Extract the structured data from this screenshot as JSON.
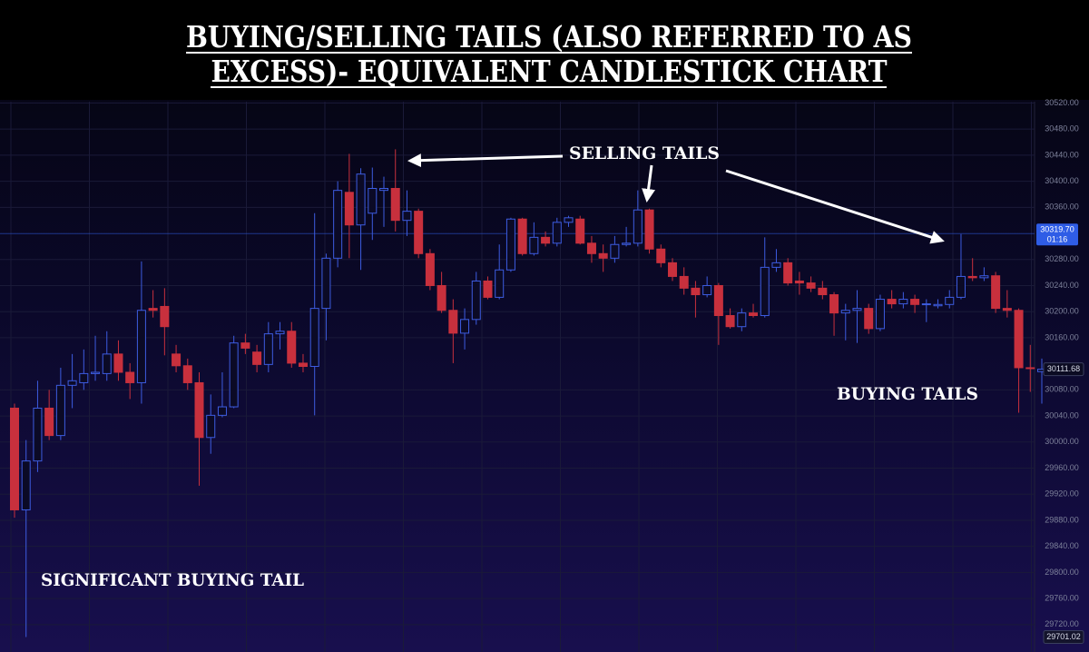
{
  "chart_data": {
    "type": "candlestick",
    "title": [
      "BUYING/SELLING TAILS (ALSO REFERRED TO AS",
      "EXCESS)- EQUIVALENT CANDLESTICK CHART"
    ],
    "annotations": [
      "SELLING TAILS",
      "BUYING TAILS",
      "SIGNIFICANT BUYING TAIL"
    ],
    "up_color": "#3d5ce0",
    "down_color": "#c8303d",
    "open": [
      30052,
      29896,
      29971,
      30052,
      30010,
      30087,
      30091,
      30105,
      30105,
      30135,
      30107,
      30091,
      30205,
      30208,
      30135,
      30117,
      30091,
      30007,
      30041,
      30054,
      30152,
      30138,
      30119,
      30166,
      30170,
      30121,
      30116,
      30205,
      30282,
      30383,
      30333,
      30351,
      30386,
      30389,
      30340,
      30354,
      30289,
      30240,
      30202,
      30167,
      30188,
      30247,
      30222,
      30264,
      30342,
      30289,
      30314,
      30305,
      30337,
      30342,
      30305,
      30289,
      30282,
      30303,
      30305,
      30356,
      30296,
      30275,
      30254,
      30236,
      30226,
      30240,
      30194,
      30177,
      30198,
      30194,
      30268,
      30275,
      30247,
      30244,
      30236,
      30226,
      30198,
      30202,
      30205,
      30174,
      30219,
      30212,
      30219,
      30211,
      30209,
      30211,
      30222,
      30254,
      30252,
      30255,
      30205,
      30202,
      30114,
      30108
    ],
    "high": [
      30059,
      30003,
      30094,
      30080,
      30114,
      30135,
      30142,
      30163,
      30170,
      30156,
      30121,
      30277,
      30233,
      30236,
      30149,
      30128,
      30107,
      30073,
      30107,
      30163,
      30166,
      30149,
      30184,
      30184,
      30184,
      30135,
      30351,
      30289,
      30400,
      30442,
      30420,
      30421,
      30407,
      30449,
      30386,
      30358,
      30296,
      30261,
      30219,
      30205,
      30261,
      30254,
      30303,
      30344,
      30344,
      30337,
      30323,
      30344,
      30347,
      30347,
      30316,
      30303,
      30316,
      30330,
      30386,
      30358,
      30303,
      30282,
      30268,
      30247,
      30254,
      30244,
      30205,
      30205,
      30212,
      30314,
      30296,
      30282,
      30261,
      30254,
      30247,
      30230,
      30212,
      30233,
      30212,
      30226,
      30233,
      30230,
      30226,
      30219,
      30219,
      30233,
      30319,
      30282,
      30268,
      30261,
      30233,
      30205,
      30149,
      30128
    ],
    "low": [
      29884,
      29701.02,
      29954,
      30003,
      30003,
      30052,
      30080,
      30094,
      30094,
      30094,
      30066,
      30059,
      30191,
      30133,
      30107,
      30080,
      29933,
      29982,
      30038,
      30052,
      30135,
      30107,
      30107,
      30142,
      30114,
      30107,
      30041,
      30156,
      30268,
      30282,
      30264,
      30310,
      30330,
      30323,
      30316,
      30282,
      30233,
      30198,
      30121,
      30142,
      30180,
      30219,
      30219,
      30261,
      30286,
      30286,
      30300,
      30300,
      30330,
      30303,
      30275,
      30261,
      30275,
      30300,
      30300,
      30289,
      30268,
      30247,
      30226,
      30191,
      30222,
      30149,
      30174,
      30170,
      30191,
      30191,
      30261,
      30240,
      30226,
      30230,
      30219,
      30163,
      30156,
      30152,
      30166,
      30170,
      30205,
      30205,
      30198,
      30184,
      30205,
      30205,
      30219,
      30247,
      30247,
      30198,
      30191,
      30045,
      30077,
      30059
    ],
    "close": [
      29896,
      29971,
      30052,
      30010,
      30087,
      30094,
      30105,
      30107,
      30135,
      30107,
      30091,
      30202,
      30202,
      30177,
      30117,
      30091,
      30007,
      30041,
      30054,
      30152,
      30144,
      30119,
      30166,
      30170,
      30121,
      30116,
      30205,
      30282,
      30386,
      30333,
      30411,
      30389,
      30389,
      30340,
      30354,
      30289,
      30240,
      30202,
      30167,
      30188,
      30247,
      30222,
      30264,
      30342,
      30289,
      30314,
      30305,
      30337,
      30344,
      30305,
      30289,
      30282,
      30303,
      30305,
      30356,
      30296,
      30275,
      30254,
      30236,
      30226,
      30240,
      30194,
      30177,
      30198,
      30194,
      30268,
      30275,
      30244,
      30244,
      30236,
      30226,
      30198,
      30202,
      30205,
      30174,
      30219,
      30212,
      30219,
      30211,
      30212,
      30211,
      30222,
      30254,
      30252,
      30255,
      30205,
      30202,
      30114,
      30113,
      30111.68
    ],
    "ylim": [
      29678,
      30522
    ],
    "yticks": [
      {
        "value": 30520,
        "label": "30520.00"
      },
      {
        "value": 30480,
        "label": "30480.00"
      },
      {
        "value": 30440,
        "label": "30440.00"
      },
      {
        "value": 30400,
        "label": "30400.00"
      },
      {
        "value": 30360,
        "label": "30360.00"
      },
      {
        "value": 30280,
        "label": "30280.00"
      },
      {
        "value": 30240,
        "label": "30240.00"
      },
      {
        "value": 30200,
        "label": "30200.00"
      },
      {
        "value": 30160,
        "label": "30160.00"
      },
      {
        "value": 30080,
        "label": "30080.00"
      },
      {
        "value": 30040,
        "label": "30040.00"
      },
      {
        "value": 30000,
        "label": "30000.00"
      },
      {
        "value": 29960,
        "label": "29960.00"
      },
      {
        "value": 29920,
        "label": "29920.00"
      },
      {
        "value": 29880,
        "label": "29880.00"
      },
      {
        "value": 29840,
        "label": "29840.00"
      },
      {
        "value": 29800,
        "label": "29800.00"
      },
      {
        "value": 29760,
        "label": "29760.00"
      },
      {
        "value": 29720,
        "label": "29720.00"
      }
    ],
    "price_labels": [
      {
        "value": 30319.7,
        "label": "30319.70",
        "sublabel": "01:16",
        "color": "#2f5de6"
      },
      {
        "value": 30111.68,
        "label": "30111.68",
        "color": "#0b0b22"
      },
      {
        "value": 29701.02,
        "label": "29701.02",
        "color": "#14142c"
      }
    ],
    "grid": true
  }
}
